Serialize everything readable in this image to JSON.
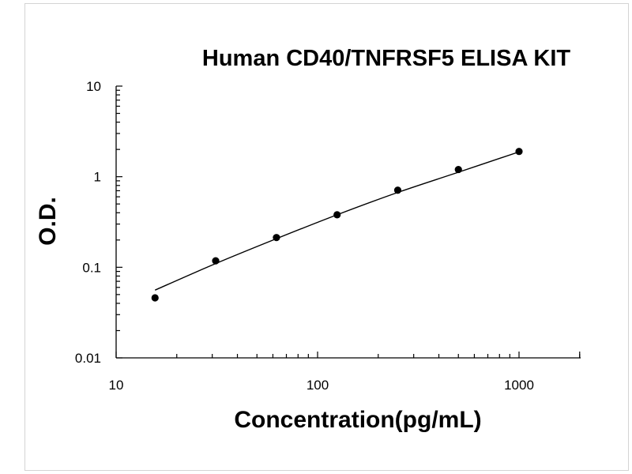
{
  "chart_data": {
    "type": "scatter",
    "title": "Human CD40/TNFRSF5 ELISA KIT",
    "xlabel": "Concentration(pg/mL)",
    "ylabel": "O.D.",
    "x_scale": "log",
    "y_scale": "log",
    "xlim": [
      10,
      2000
    ],
    "ylim": [
      0.01,
      10
    ],
    "x_ticks": [
      10,
      100,
      1000
    ],
    "x_tick_labels": [
      "10",
      "100",
      "1000"
    ],
    "y_ticks": [
      0.01,
      0.1,
      1,
      10
    ],
    "y_tick_labels": [
      "0.01",
      "0.1",
      "1",
      "10"
    ],
    "grid": false,
    "series": [
      {
        "x": [
          15.6,
          31.2,
          62.5,
          125,
          250,
          500,
          1000
        ],
        "y": [
          0.046,
          0.118,
          0.213,
          0.38,
          0.71,
          1.2,
          1.9
        ]
      }
    ],
    "fit_curve": {
      "x": [
        15.6,
        31.2,
        62.5,
        125,
        250,
        500,
        1000
      ],
      "y": [
        0.056,
        0.11,
        0.207,
        0.38,
        0.67,
        1.12,
        1.88
      ]
    }
  }
}
